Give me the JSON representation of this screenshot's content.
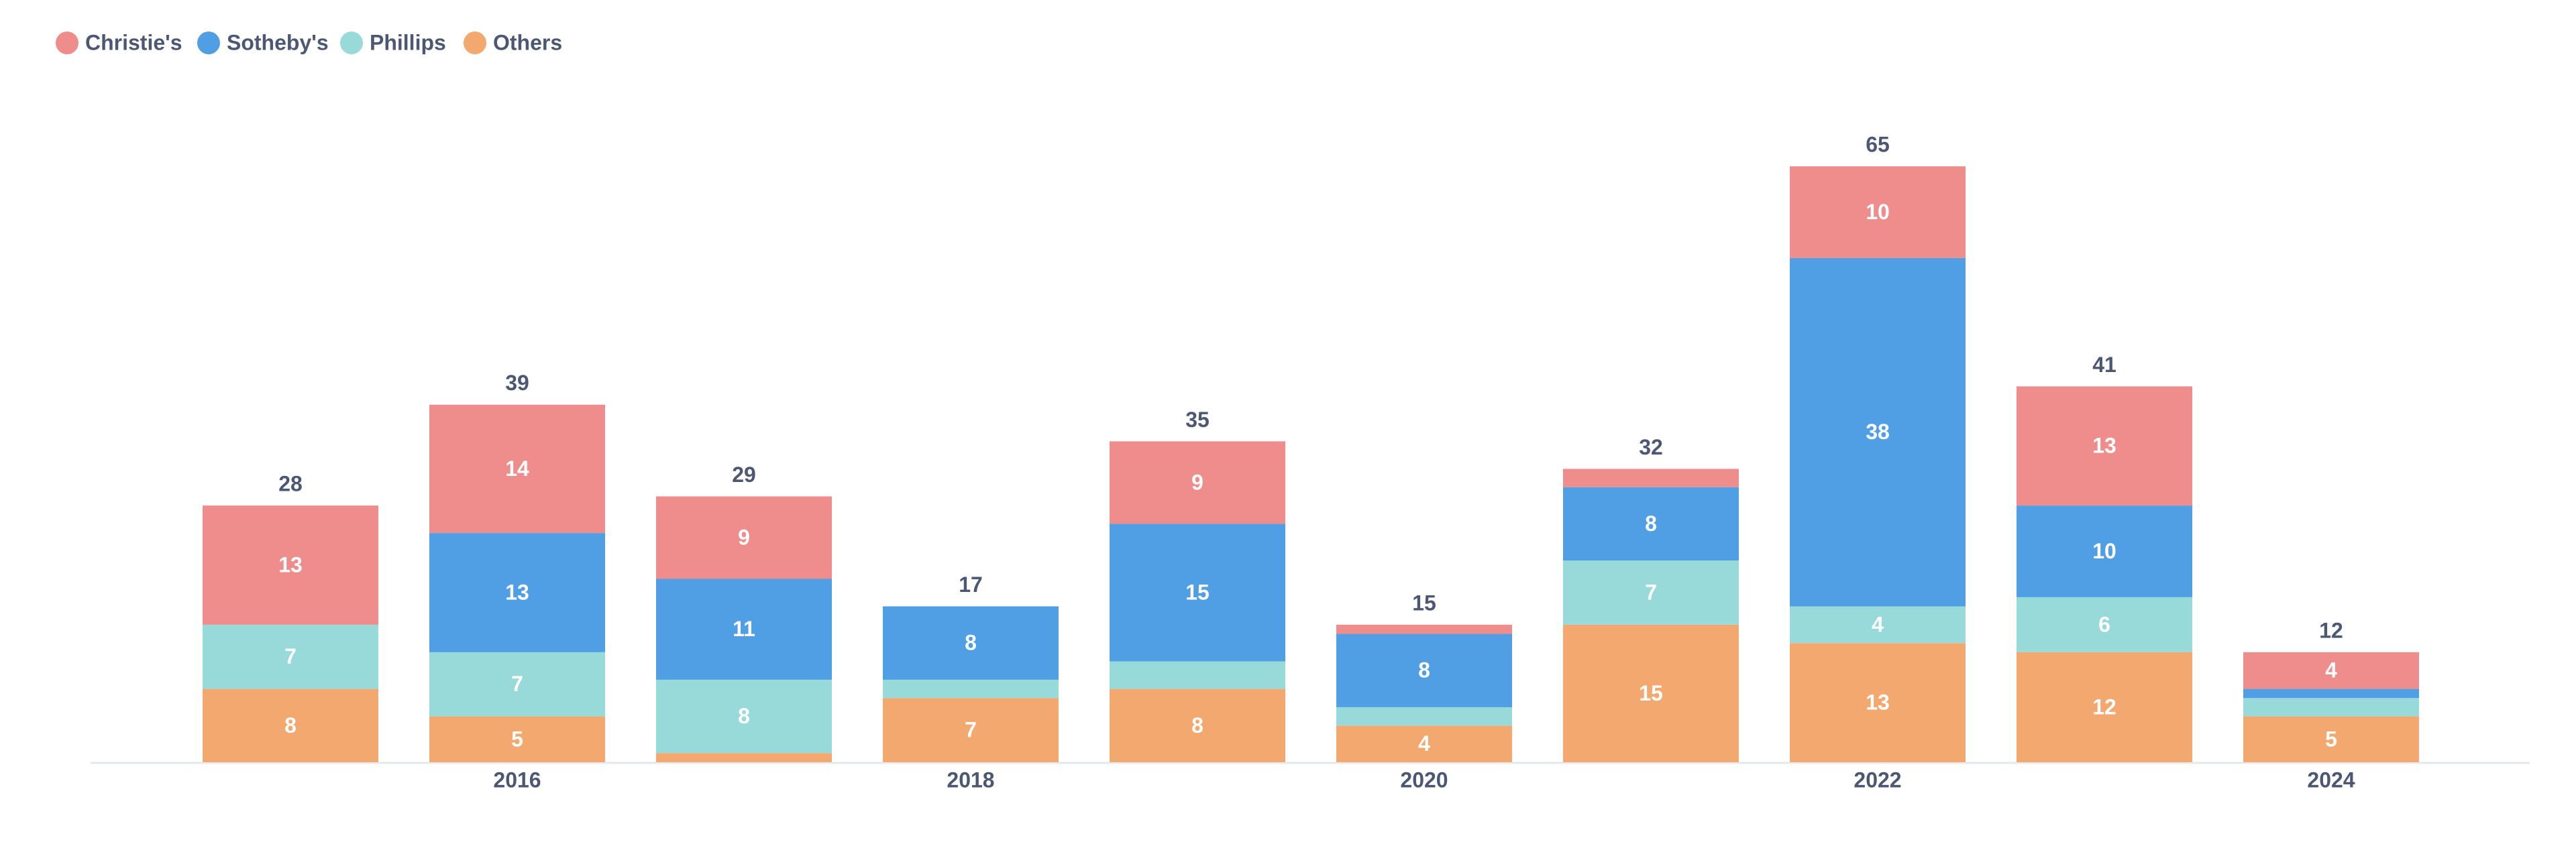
{
  "chart_data": {
    "type": "stacked-bar",
    "categories": [
      null,
      "2016",
      null,
      "2018",
      null,
      "2020",
      null,
      "2022",
      null,
      "2024"
    ],
    "series": [
      {
        "name": "Others",
        "color": "#f2a86f",
        "values": [
          8,
          5,
          1,
          7,
          8,
          4,
          15,
          13,
          12,
          5
        ]
      },
      {
        "name": "Phillips",
        "color": "#98d9d9",
        "values": [
          7,
          7,
          8,
          2,
          3,
          2,
          7,
          4,
          6,
          2
        ]
      },
      {
        "name": "Sotheby's",
        "color": "#509ee3",
        "values": [
          0,
          13,
          11,
          8,
          15,
          8,
          8,
          38,
          10,
          1
        ]
      },
      {
        "name": "Christie's",
        "color": "#ef8c8c",
        "values": [
          13,
          14,
          9,
          0,
          9,
          1,
          2,
          10,
          13,
          4
        ]
      }
    ],
    "totals": [
      28,
      39,
      29,
      17,
      35,
      15,
      32,
      65,
      41,
      12
    ],
    "legend_order": [
      3,
      2,
      1,
      0
    ],
    "ylim": [
      0,
      80
    ],
    "legend": "top-left"
  }
}
